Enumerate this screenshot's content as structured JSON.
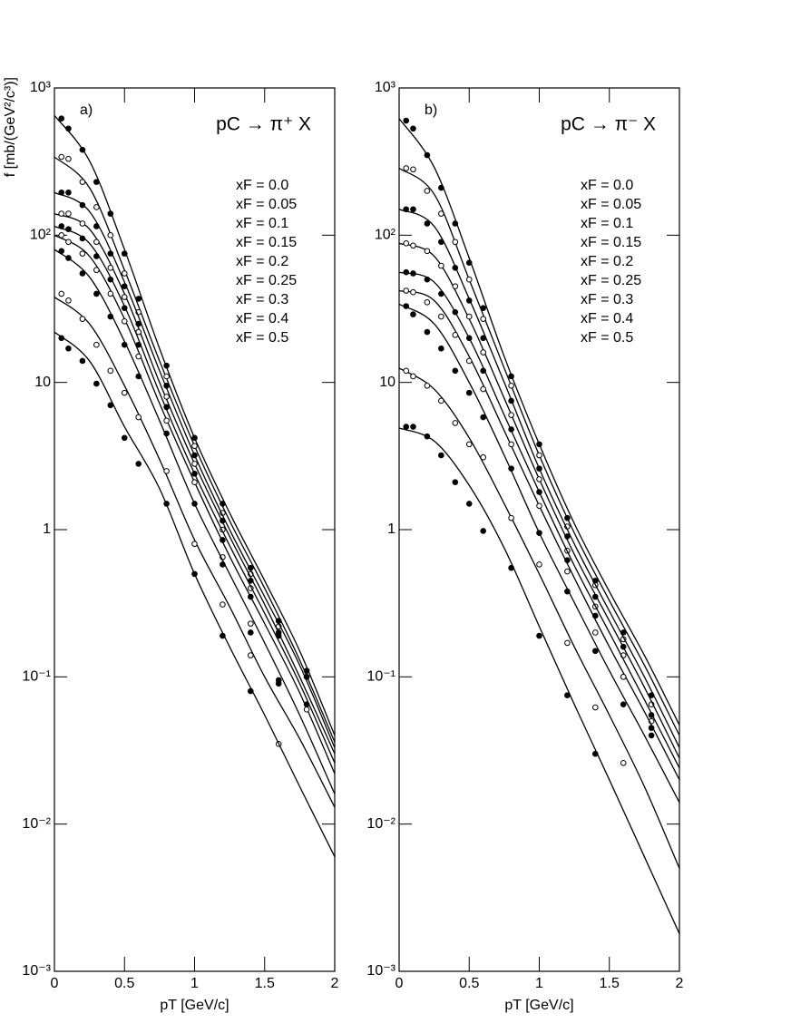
{
  "chart_data": [
    {
      "type": "scatter",
      "panel_label": "a)",
      "reaction": "pC → π⁺ X",
      "y_label": "f [mb/(GeV²/c³)]",
      "x_label": "pT [GeV/c]",
      "log_y": true,
      "xlim": [
        0,
        2
      ],
      "ylim": [
        0.001,
        1000
      ],
      "xticks": [
        0,
        0.5,
        1,
        1.5,
        2
      ],
      "yticks": [
        {
          "value": 0.001,
          "label": "10⁻³"
        },
        {
          "value": 0.01,
          "label": "10⁻²"
        },
        {
          "value": 0.1,
          "label": "10⁻¹"
        },
        1,
        10,
        {
          "value": 100,
          "label": "10²"
        },
        {
          "value": 1000,
          "label": "10³"
        }
      ],
      "x": [
        0.05,
        0.1,
        0.2,
        0.3,
        0.4,
        0.5,
        0.6,
        0.8,
        1.0,
        1.2,
        1.4,
        1.6,
        1.8
      ],
      "fit_x": [
        0,
        0.25,
        0.5,
        0.75,
        1,
        1.25,
        1.5,
        1.75,
        2
      ],
      "color": "#000000",
      "series": [
        {
          "name": "xF = 0.0",
          "marker": "filled",
          "values": [
            620,
            530,
            380,
            230,
            140,
            75,
            37,
            13,
            4.2,
            1.5,
            0.55,
            0.24,
            0.11
          ],
          "fit": [
            650,
            320,
            80,
            17,
            4.2,
            1.3,
            0.45,
            0.15,
            0.04
          ]
        },
        {
          "name": "xF = 0.05",
          "marker": "open",
          "values": [
            340,
            330,
            230,
            155,
            100,
            55,
            30,
            11,
            3.7,
            1.3,
            0.5,
            0.22,
            0.1
          ],
          "fit": [
            340,
            210,
            58,
            14,
            3.7,
            1.15,
            0.4,
            0.13,
            0.036
          ]
        },
        {
          "name": "xF = 0.1",
          "marker": "filled",
          "values": [
            195,
            195,
            160,
            115,
            75,
            45,
            25,
            9.5,
            3.2,
            1.15,
            0.45,
            0.2,
            0.1
          ],
          "fit": [
            195,
            145,
            48,
            12,
            3.2,
            1.0,
            0.35,
            0.12,
            0.033
          ]
        },
        {
          "name": "xF = 0.15",
          "marker": "open",
          "values": [
            140,
            140,
            120,
            90,
            60,
            38,
            22,
            8,
            2.8,
            1.0,
            0.4,
            null,
            null
          ],
          "fit": [
            140,
            110,
            40,
            10,
            2.8,
            0.9,
            0.31,
            0.1,
            0.03
          ]
        },
        {
          "name": "xF = 0.2",
          "marker": "filled",
          "values": [
            115,
            110,
            95,
            72,
            50,
            32,
            18,
            6.8,
            2.4,
            0.85,
            0.35,
            0.19,
            null
          ],
          "fit": [
            115,
            88,
            33,
            8.5,
            2.4,
            0.78,
            0.27,
            0.09,
            0.026
          ]
        },
        {
          "name": "xF = 0.25",
          "marker": "open",
          "values": [
            100,
            90,
            75,
            58,
            40,
            26,
            15,
            5.5,
            2.1,
            0.65,
            0.23,
            null,
            null
          ],
          "fit": [
            100,
            72,
            27,
            7.2,
            2.1,
            0.66,
            0.23,
            0.078,
            0.022
          ]
        },
        {
          "name": "xF = 0.3",
          "marker": "filled",
          "values": [
            78,
            70,
            55,
            40,
            28,
            18,
            11,
            4.5,
            1.5,
            0.58,
            0.2,
            0.09,
            0.065
          ],
          "fit": [
            80,
            52,
            19,
            5.5,
            1.5,
            0.5,
            0.17,
            0.055,
            0.016
          ]
        },
        {
          "name": "xF = 0.4",
          "marker": "open",
          "values": [
            40,
            36,
            27,
            18,
            12,
            8.5,
            5.8,
            2.5,
            0.8,
            0.31,
            0.14,
            0.035,
            0.06
          ],
          "fit": [
            38,
            25,
            9.5,
            3.0,
            0.85,
            0.3,
            0.1,
            0.038,
            0.013
          ]
        },
        {
          "name": "xF = 0.5",
          "marker": "filled",
          "values": [
            20,
            17,
            14,
            9.8,
            7,
            4.2,
            2.8,
            1.5,
            0.5,
            0.19,
            0.08,
            0.095,
            null
          ],
          "fit": [
            22,
            14,
            5,
            1.9,
            0.5,
            0.16,
            0.055,
            0.018,
            0.006
          ]
        }
      ]
    },
    {
      "type": "scatter",
      "panel_label": "b)",
      "reaction": "pC → π⁻ X",
      "x_label": "pT [GeV/c]",
      "log_y": true,
      "xlim": [
        0,
        2
      ],
      "ylim": [
        0.001,
        1000
      ],
      "xticks": [
        0,
        0.5,
        1,
        1.5,
        2
      ],
      "yticks": [
        {
          "value": 0.001,
          "label": "10⁻³"
        },
        {
          "value": 0.01,
          "label": "10⁻²"
        },
        {
          "value": 0.1,
          "label": "10⁻¹"
        },
        1,
        10,
        {
          "value": 100,
          "label": "10²"
        },
        {
          "value": 1000,
          "label": "10³"
        }
      ],
      "x": [
        0.05,
        0.1,
        0.2,
        0.3,
        0.4,
        0.5,
        0.6,
        0.8,
        1.0,
        1.2,
        1.4,
        1.6,
        1.8
      ],
      "fit_x": [
        0,
        0.25,
        0.5,
        0.75,
        1,
        1.25,
        1.5,
        1.75,
        2
      ],
      "color": "#000000",
      "series": [
        {
          "name": "xF = 0.0",
          "marker": "filled",
          "values": [
            600,
            530,
            350,
            210,
            120,
            65,
            32,
            11,
            3.8,
            1.2,
            0.45,
            0.2,
            0.075
          ],
          "fit": [
            620,
            290,
            70,
            15,
            3.8,
            1.1,
            0.38,
            0.14,
            0.047
          ]
        },
        {
          "name": "xF = 0.05",
          "marker": "open",
          "values": [
            285,
            280,
            200,
            140,
            90,
            50,
            27,
            9.5,
            3.2,
            1.05,
            0.42,
            0.18,
            0.065
          ],
          "fit": [
            285,
            190,
            50,
            12.5,
            3.2,
            0.95,
            0.33,
            0.12,
            0.04
          ]
        },
        {
          "name": "xF = 0.1",
          "marker": "filled",
          "values": [
            150,
            150,
            120,
            90,
            60,
            36,
            20,
            7.5,
            2.6,
            0.9,
            0.35,
            0.16,
            0.055
          ],
          "fit": [
            150,
            115,
            37,
            10,
            2.6,
            0.8,
            0.28,
            0.1,
            0.033
          ]
        },
        {
          "name": "xF = 0.15",
          "marker": "open",
          "values": [
            88,
            85,
            78,
            62,
            45,
            28,
            16,
            6,
            2.2,
            0.72,
            0.3,
            0.14,
            0.05
          ],
          "fit": [
            88,
            72,
            27,
            7.8,
            2.2,
            0.68,
            0.24,
            0.085,
            0.028
          ]
        },
        {
          "name": "xF = 0.2",
          "marker": "filled",
          "values": [
            56,
            55,
            50,
            40,
            30,
            20,
            12,
            4.8,
            1.8,
            0.62,
            0.26,
            0.1,
            0.045
          ],
          "fit": [
            56,
            48,
            20,
            6,
            1.8,
            0.57,
            0.2,
            0.07,
            0.024
          ]
        },
        {
          "name": "xF = 0.25",
          "marker": "open",
          "values": [
            42,
            41,
            35,
            28,
            21,
            14,
            9,
            3.8,
            1.45,
            0.52,
            0.2,
            0.1,
            null
          ],
          "fit": [
            42,
            36,
            15,
            4.7,
            1.45,
            0.47,
            0.16,
            0.058,
            0.02
          ]
        },
        {
          "name": "xF = 0.3",
          "marker": "filled",
          "values": [
            33,
            29,
            22,
            17,
            12,
            8.5,
            5.8,
            2.6,
            0.95,
            0.38,
            0.15,
            0.065,
            0.04
          ],
          "fit": [
            34,
            25,
            10,
            3.2,
            0.95,
            0.32,
            0.11,
            0.04,
            0.014
          ]
        },
        {
          "name": "xF = 0.4",
          "marker": "open",
          "values": [
            12,
            11,
            9.5,
            7.5,
            5.3,
            3.8,
            3.1,
            1.2,
            0.58,
            0.17,
            0.062,
            0.026,
            null
          ],
          "fit": [
            12.5,
            9,
            4.2,
            1.5,
            0.5,
            0.16,
            0.055,
            0.018,
            0.005
          ]
        },
        {
          "name": "xF = 0.5",
          "marker": "filled",
          "values": [
            5,
            5,
            4.3,
            3.2,
            2.1,
            1.5,
            0.98,
            0.55,
            0.19,
            0.075,
            0.03,
            null,
            null
          ],
          "fit": [
            4.9,
            4,
            2,
            0.75,
            0.22,
            0.065,
            0.02,
            0.006,
            0.0018
          ]
        }
      ]
    }
  ]
}
